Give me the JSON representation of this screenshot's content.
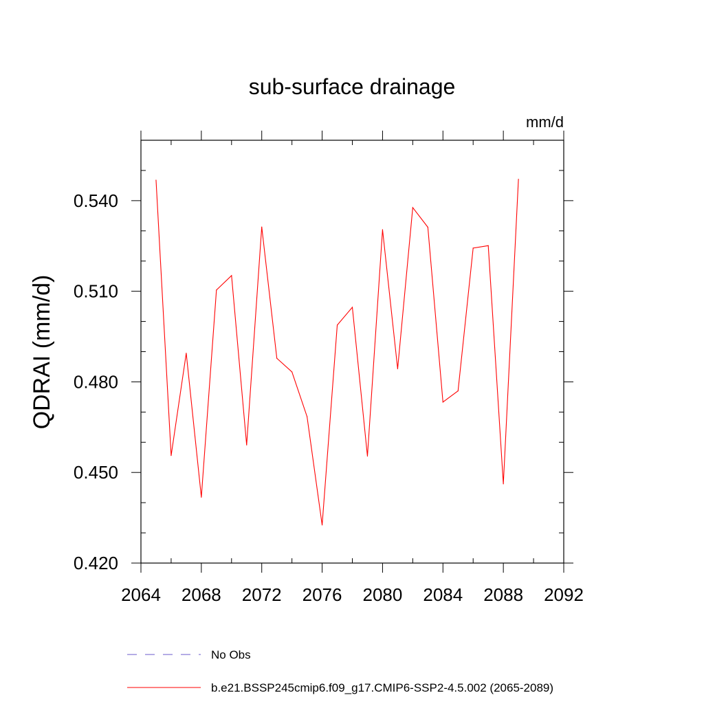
{
  "chart_data": {
    "type": "line",
    "title": "sub-surface drainage",
    "units_label": "mm/d",
    "ylabel": "QDRAI  (mm/d)",
    "xlabel": "",
    "xlim": [
      2064,
      2092
    ],
    "ylim": [
      0.42,
      0.56
    ],
    "x_ticks": [
      2064,
      2068,
      2072,
      2076,
      2080,
      2084,
      2088,
      2092
    ],
    "x_tick_labels": [
      "2064",
      "2068",
      "2072",
      "2076",
      "2080",
      "2084",
      "2088",
      "2092"
    ],
    "x_minor_step": 2,
    "y_ticks": [
      0.42,
      0.45,
      0.48,
      0.51,
      0.54
    ],
    "y_tick_labels": [
      "0.420",
      "0.450",
      "0.480",
      "0.510",
      "0.540"
    ],
    "y_minor_step": 0.01,
    "grid": false,
    "legend_position": "bottom",
    "series": [
      {
        "name": "No Obs",
        "color": "#6a5acd",
        "dashed": true,
        "x": [],
        "values": []
      },
      {
        "name": "b.e21.BSSP245cmip6.f09_g17.CMIP6-SSP2-4.5.002 (2065-2089)",
        "color": "#ff0000",
        "dashed": false,
        "x": [
          2065,
          2066,
          2067,
          2068,
          2069,
          2070,
          2071,
          2072,
          2073,
          2074,
          2075,
          2076,
          2077,
          2078,
          2079,
          2080,
          2081,
          2082,
          2083,
          2084,
          2085,
          2086,
          2087,
          2088,
          2089
        ],
        "values": [
          0.5468,
          0.4556,
          0.4895,
          0.4418,
          0.5104,
          0.5152,
          0.4591,
          0.5313,
          0.4878,
          0.4833,
          0.4685,
          0.4326,
          0.4988,
          0.5047,
          0.4554,
          0.5304,
          0.4843,
          0.5377,
          0.5312,
          0.4733,
          0.477,
          0.5243,
          0.5251,
          0.4462,
          0.5471
        ]
      }
    ]
  }
}
